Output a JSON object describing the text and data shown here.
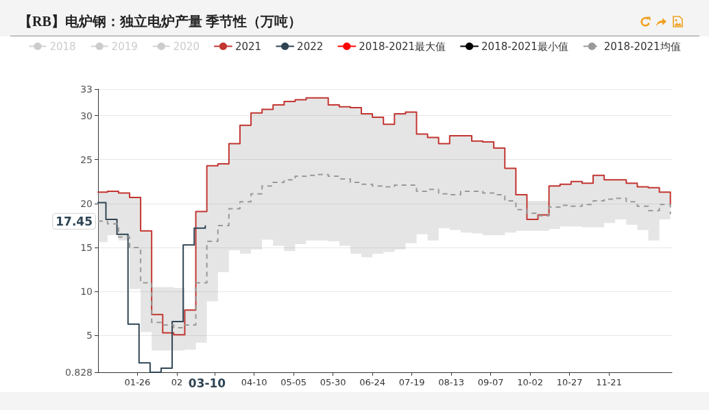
{
  "chart_data": {
    "type": "step",
    "title": "【RB】电炉钢：独立电炉产量 季节性（万吨）",
    "x": [
      "--01-01",
      "--01-07",
      "--01-14",
      "--01-21",
      "--01-28",
      "--02-04",
      "--02-11",
      "--02-18",
      "--02-25",
      "--03-04",
      "--03-11",
      "--03-18",
      "--03-25",
      "--04-01",
      "--04-08",
      "--04-15",
      "--04-22",
      "--04-29",
      "--05-06",
      "--05-13",
      "--05-20",
      "--05-27",
      "--06-03",
      "--06-10",
      "--06-17",
      "--06-24",
      "--07-01",
      "--07-08",
      "--07-15",
      "--07-22",
      "--07-29",
      "--08-05",
      "--08-12",
      "--08-19",
      "--08-26",
      "--09-02",
      "--09-09",
      "--09-16",
      "--09-23",
      "--09-30",
      "--10-07",
      "--10-14",
      "--10-21",
      "--10-28",
      "--11-04",
      "--11-11",
      "--11-18",
      "--11-25",
      "--12-02",
      "--12-09",
      "--12-16",
      "--12-23",
      "--12-30"
    ],
    "series": [
      {
        "name": "2018",
        "values": [
          null,
          null,
          null,
          null,
          null,
          null,
          null,
          null,
          null,
          null,
          null,
          null,
          null,
          null,
          null,
          null,
          null,
          null,
          null,
          null,
          null,
          null,
          null,
          null,
          null,
          null,
          null,
          null,
          null,
          null,
          null,
          null,
          null,
          null,
          null,
          null,
          null,
          null,
          null,
          null,
          null,
          null,
          null,
          null,
          null,
          null,
          null,
          null,
          null,
          null,
          null,
          null,
          null
        ]
      },
      {
        "name": "2019",
        "values": [
          null,
          null,
          null,
          null,
          null,
          null,
          null,
          null,
          null,
          null,
          null,
          null,
          null,
          null,
          null,
          null,
          null,
          null,
          null,
          null,
          null,
          null,
          null,
          null,
          null,
          null,
          null,
          null,
          null,
          null,
          null,
          null,
          null,
          null,
          null,
          null,
          null,
          null,
          null,
          null,
          null,
          null,
          null,
          null,
          null,
          null,
          null,
          null,
          null,
          null,
          null,
          null,
          null
        ]
      },
      {
        "name": "2020",
        "values": [
          null,
          null,
          null,
          null,
          null,
          null,
          null,
          null,
          null,
          null,
          null,
          null,
          null,
          null,
          null,
          null,
          null,
          null,
          null,
          null,
          null,
          null,
          null,
          null,
          null,
          null,
          null,
          null,
          null,
          null,
          null,
          null,
          null,
          null,
          null,
          null,
          null,
          null,
          null,
          null,
          null,
          null,
          null,
          null,
          null,
          null,
          null,
          null,
          null,
          null,
          null,
          null,
          null
        ]
      },
      {
        "name": "2021",
        "color": "#c23531",
        "values": [
          21.3,
          21.4,
          21.2,
          20.7,
          16.9,
          7.4,
          5.3,
          5.1,
          7.9,
          19.1,
          24.3,
          24.5,
          26.8,
          28.9,
          30.3,
          30.7,
          31.2,
          31.6,
          31.8,
          32.0,
          32.0,
          31.2,
          31.0,
          30.9,
          30.2,
          29.8,
          29.0,
          30.2,
          30.4,
          27.9,
          27.5,
          26.8,
          27.7,
          27.7,
          27.1,
          27.0,
          26.3,
          24.0,
          21.0,
          18.2,
          18.7,
          22.0,
          22.2,
          22.5,
          22.3,
          23.2,
          22.7,
          22.7,
          22.3,
          21.9,
          21.8,
          21.3,
          20.0
        ]
      },
      {
        "name": "2022",
        "color": "#2f4554",
        "x": [
          "--01-01",
          "--01-06",
          "--01-13",
          "--01-20",
          "--01-27",
          "--02-03",
          "--02-10",
          "--02-17",
          "--02-24",
          "--03-03",
          "--03-10"
        ],
        "values": [
          20.1,
          18.2,
          16.5,
          6.3,
          1.9,
          0.828,
          1.3,
          6.6,
          15.3,
          17.2,
          17.45
        ]
      },
      {
        "name": "2018-2021最大值",
        "color": "#ff0000",
        "values": [
          null,
          null,
          null,
          null,
          null,
          null,
          null,
          null,
          null,
          null,
          null,
          null,
          null,
          null,
          null,
          null,
          null,
          null,
          null,
          null,
          null,
          null,
          null,
          null,
          null,
          null,
          null,
          null,
          null,
          null,
          null,
          null,
          null,
          null,
          null,
          null,
          null,
          null,
          null,
          null,
          null,
          null,
          null,
          null,
          null,
          null,
          null,
          null,
          null,
          null,
          null,
          null,
          null
        ]
      },
      {
        "name": "2018-2021最小值",
        "color": "#000000",
        "values": [
          null,
          null,
          null,
          null,
          null,
          null,
          null,
          null,
          null,
          null,
          null,
          null,
          null,
          null,
          null,
          null,
          null,
          null,
          null,
          null,
          null,
          null,
          null,
          null,
          null,
          null,
          null,
          null,
          null,
          null,
          null,
          null,
          null,
          null,
          null,
          null,
          null,
          null,
          null,
          null,
          null,
          null,
          null,
          null,
          null,
          null,
          null,
          null,
          null,
          null,
          null,
          null,
          null
        ]
      },
      {
        "name": "2018-2021均值",
        "color": "#999999",
        "line_style": "dashed",
        "values": [
          18.0,
          17.7,
          16.2,
          15.0,
          11.0,
          6.5,
          6.2,
          5.9,
          6.2,
          11.0,
          15.7,
          17.5,
          19.4,
          20.2,
          21.1,
          22.0,
          22.4,
          22.7,
          23.1,
          23.2,
          23.3,
          23.1,
          22.8,
          22.4,
          22.2,
          22.0,
          21.9,
          22.1,
          22.1,
          21.4,
          21.6,
          21.1,
          21.0,
          21.4,
          21.4,
          21.2,
          21.0,
          20.3,
          19.3,
          18.9,
          18.6,
          19.6,
          19.8,
          19.7,
          19.9,
          20.3,
          20.5,
          20.6,
          20.2,
          19.7,
          19.2,
          19.9,
          18.8
        ],
        "lower": [
          15.6,
          16.4,
          15.8,
          10.3,
          5.4,
          3.3,
          3.3,
          3.3,
          3.4,
          4.2,
          8.9,
          12.2,
          14.7,
          14.3,
          14.8,
          15.9,
          15.2,
          14.6,
          15.4,
          15.8,
          15.8,
          15.7,
          15.2,
          14.3,
          13.9,
          14.3,
          14.5,
          14.8,
          15.5,
          16.5,
          15.8,
          17.2,
          17.0,
          16.7,
          16.6,
          16.4,
          16.4,
          16.7,
          16.9,
          16.9,
          16.9,
          17.1,
          17.4,
          17.4,
          17.3,
          17.3,
          17.8,
          18.2,
          17.6,
          17.0,
          15.8,
          18.2,
          15.6
        ],
        "upper": [
          21.3,
          21.4,
          21.2,
          20.7,
          16.9,
          10.5,
          10.5,
          10.4,
          7.9,
          19.1,
          24.3,
          24.5,
          26.8,
          28.9,
          30.3,
          30.7,
          31.2,
          31.6,
          31.8,
          32.0,
          32.0,
          31.2,
          31.0,
          30.9,
          30.2,
          29.8,
          29.0,
          30.2,
          30.4,
          27.9,
          27.5,
          26.8,
          27.7,
          27.7,
          27.1,
          27.0,
          26.3,
          24.0,
          21.0,
          20.3,
          20.3,
          22.0,
          22.2,
          22.5,
          22.3,
          23.2,
          22.7,
          22.7,
          22.3,
          21.9,
          21.8,
          21.3,
          20.0
        ]
      }
    ],
    "xlim": [
      "--01-01",
      "--12-31"
    ],
    "xticks": [
      {
        "value": "--01-26",
        "label": "01-26"
      },
      {
        "value": "--02-20",
        "label": "02"
      },
      {
        "value": "--03-16",
        "label": null
      },
      {
        "value": "--04-10",
        "label": "04-10"
      },
      {
        "value": "--05-05",
        "label": "05-05"
      },
      {
        "value": "--05-30",
        "label": "05-30"
      },
      {
        "value": "--06-24",
        "label": "06-24"
      },
      {
        "value": "--07-19",
        "label": "07-19"
      },
      {
        "value": "--08-13",
        "label": "08-13"
      },
      {
        "value": "--09-07",
        "label": "09-07"
      },
      {
        "value": "--10-02",
        "label": "10-02"
      },
      {
        "value": "--10-27",
        "label": "10-27"
      },
      {
        "value": "--11-21",
        "label": "11-21"
      }
    ],
    "ylim": [
      0.828,
      33
    ],
    "yticks": [
      0.828,
      5,
      10,
      15,
      20,
      25,
      30,
      33
    ],
    "annotations": [
      "17.45",
      "03-10"
    ],
    "grid": "y",
    "legend": "top"
  }
}
